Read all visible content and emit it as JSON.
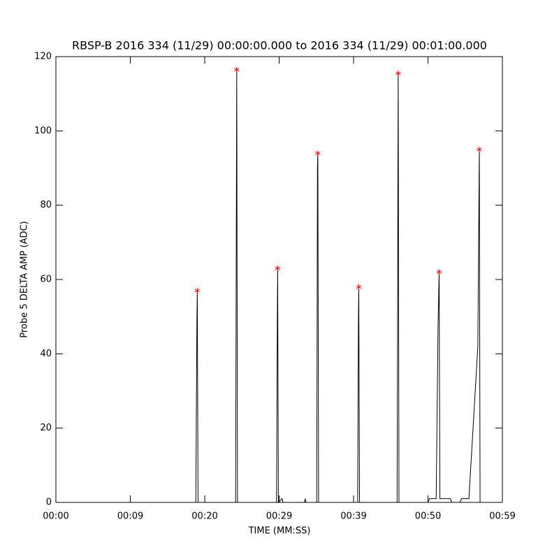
{
  "chart_data": {
    "type": "line",
    "title": "RBSP-B 2016 334 (11/29) 00:00:00.000 to 2016 334 (11/29) 00:01:00.000",
    "x_label": "TIME (MM:SS)",
    "y_label": "Probe 5 DELTA AMP (ADC)",
    "xlim": [
      0,
      60
    ],
    "xticks": [
      {
        "value": 0,
        "label": "00:00"
      },
      {
        "value": 10,
        "label": "00:09"
      },
      {
        "value": 20,
        "label": "00:20"
      },
      {
        "value": 30,
        "label": "00:29"
      },
      {
        "value": 40,
        "label": "00:39"
      },
      {
        "value": 50,
        "label": "00:50"
      },
      {
        "value": 60,
        "label": "00:59"
      }
    ],
    "ylim": [
      0,
      120
    ],
    "yticks": [
      0,
      20,
      40,
      60,
      80,
      100,
      120
    ],
    "series": [
      {
        "color": "#000000",
        "x": [
          0,
          18.8,
          18.95,
          19.0,
          19.1,
          24.15,
          24.25,
          24.3,
          24.4,
          29.65,
          29.75,
          29.8,
          29.9,
          30.4,
          30.5,
          33.4,
          33.5,
          33.6,
          35.05,
          35.15,
          35.2,
          35.3,
          40.55,
          40.65,
          40.7,
          40.8,
          45.85,
          45.95,
          46.0,
          46.1,
          50.0,
          50.2,
          51.1,
          51.35,
          51.5,
          51.6,
          53.0,
          53.2,
          54.3,
          54.5,
          55.5,
          56.7,
          56.9,
          57.0,
          60
        ],
        "values": [
          0,
          0,
          49,
          57,
          0,
          0,
          79,
          116.5,
          0,
          0,
          47,
          63,
          0,
          1,
          0,
          0,
          1,
          0,
          0,
          90,
          94,
          0,
          0,
          48,
          58,
          0,
          0,
          80,
          115.5,
          0,
          0,
          1,
          1,
          47,
          62,
          1,
          1,
          0,
          0,
          1,
          1,
          42,
          95,
          0,
          0
        ]
      },
      {
        "color": "#ff0000",
        "marker": "asterisk",
        "x": [
          19.0,
          24.3,
          29.8,
          35.2,
          40.7,
          46.0,
          51.5,
          56.9
        ],
        "values": [
          57,
          116.5,
          63,
          94,
          58,
          115.5,
          62,
          95
        ]
      }
    ]
  }
}
